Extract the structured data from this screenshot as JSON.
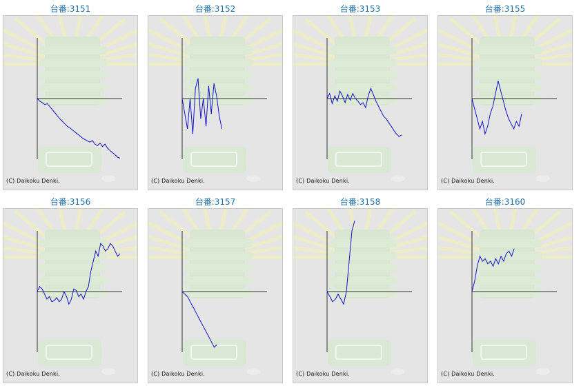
{
  "copyright": "(C) Daikoku Denki.",
  "colors": {
    "line": "#1212c8",
    "axis": "#333333",
    "title": "#1f6fa8"
  },
  "chart_data": [
    {
      "type": "line",
      "title": "台番:3151",
      "y": [
        0,
        -5,
        -8,
        -12,
        -10,
        -16,
        -22,
        -28,
        -34,
        -40,
        -45,
        -50,
        -55,
        -58,
        -62,
        -66,
        -70,
        -74,
        -78,
        -81,
        -84,
        -86,
        -83,
        -90,
        -93,
        -88,
        -95,
        -90,
        -98,
        -103,
        -107,
        -111,
        -116,
        -118
      ]
    },
    {
      "type": "line",
      "title": "台番:3152",
      "y": [
        0,
        -30,
        -60,
        0,
        -70,
        20,
        40,
        -40,
        0,
        -55,
        25,
        -30,
        30,
        5,
        -35,
        -60
      ]
    },
    {
      "type": "line",
      "title": "台番:3153",
      "y": [
        0,
        10,
        -10,
        5,
        -5,
        15,
        5,
        -8,
        8,
        -3,
        10,
        0,
        -5,
        -12,
        -8,
        -18,
        5,
        20,
        8,
        -5,
        -15,
        -25,
        -35,
        -40,
        -48,
        -55,
        -63,
        -70,
        -75,
        -72
      ]
    },
    {
      "type": "line",
      "title": "台番:3155",
      "y": [
        0,
        -20,
        -40,
        -60,
        -45,
        -70,
        -55,
        -30,
        -15,
        10,
        35,
        15,
        -5,
        -25,
        -40,
        -50,
        -60,
        -45,
        -55,
        -30
      ]
    },
    {
      "type": "line",
      "title": "台番:3156",
      "y": [
        0,
        10,
        5,
        -5,
        -15,
        -10,
        -20,
        -18,
        -12,
        -20,
        -15,
        0,
        -10,
        -25,
        -15,
        5,
        2,
        -10,
        -5,
        -15,
        0,
        10,
        40,
        60,
        80,
        70,
        95,
        90,
        80,
        85,
        95,
        90,
        80,
        70,
        75
      ]
    },
    {
      "type": "line",
      "title": "台番:3157",
      "y": [
        0,
        -5,
        -10,
        -20,
        -30,
        -40,
        -50,
        -60,
        -70,
        -80,
        -90,
        -100,
        -110,
        -105
      ]
    },
    {
      "type": "line",
      "title": "台番:3158",
      "y": [
        0,
        -10,
        -20,
        -15,
        -5,
        -15,
        -25,
        0,
        60,
        120,
        140
      ]
    },
    {
      "type": "line",
      "title": "台番:3160",
      "y": [
        0,
        20,
        50,
        70,
        60,
        65,
        55,
        60,
        50,
        65,
        55,
        70,
        60,
        75,
        80,
        70,
        85
      ]
    }
  ]
}
